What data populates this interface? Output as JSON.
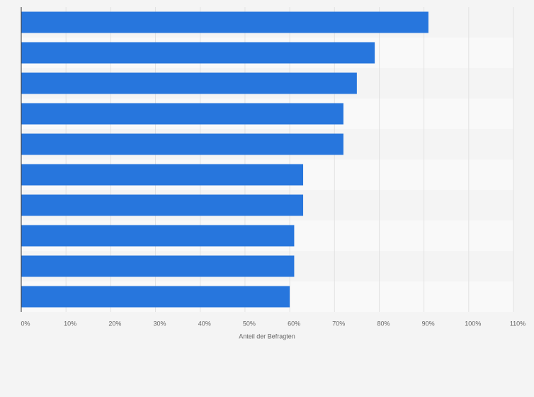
{
  "chart_data": {
    "type": "barh",
    "xlabel": "Anteil der Befragten",
    "categories": [
      null,
      null,
      null,
      null,
      null,
      null,
      null,
      null,
      null,
      null
    ],
    "values": [
      91,
      79,
      75,
      72,
      72,
      63,
      63,
      61,
      61,
      60
    ],
    "color": "#2776dd",
    "xlim": [
      0,
      110
    ],
    "xticks": [
      {
        "value": 0,
        "label": "0%"
      },
      {
        "value": 10,
        "label": "10%"
      },
      {
        "value": 20,
        "label": "20%"
      },
      {
        "value": 30,
        "label": "30%"
      },
      {
        "value": 40,
        "label": "40%"
      },
      {
        "value": 50,
        "label": "50%"
      },
      {
        "value": 60,
        "label": "60%"
      },
      {
        "value": 70,
        "label": "70%"
      },
      {
        "value": 80,
        "label": "80%"
      },
      {
        "value": 90,
        "label": "90%"
      },
      {
        "value": 100,
        "label": "100%"
      },
      {
        "value": 110,
        "label": "110%"
      }
    ],
    "grid": true
  }
}
